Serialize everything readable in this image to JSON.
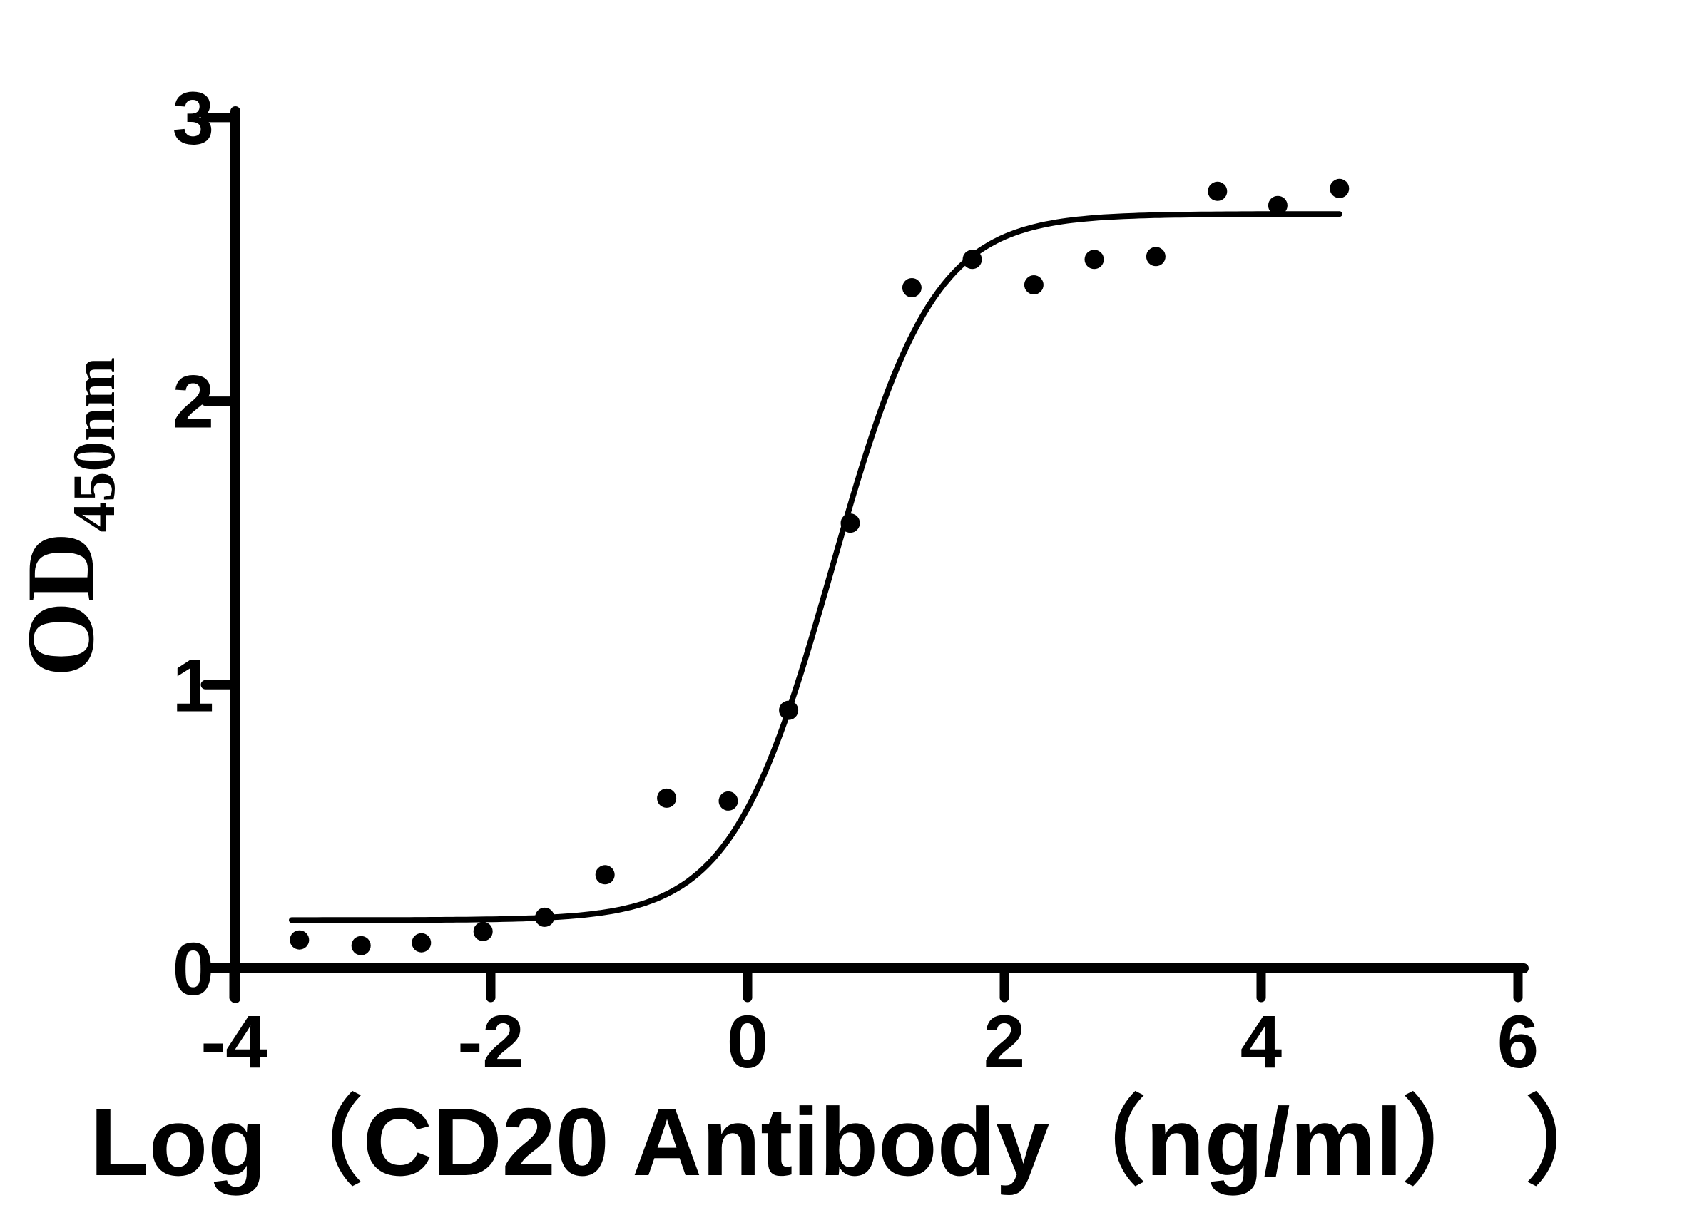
{
  "figure": {
    "background": "#ffffff",
    "ink": "#000000"
  },
  "chart_data": {
    "type": "scatter",
    "title": "",
    "xlabel": "Log（CD20 Antibody（ng/ml） ）",
    "ylabel": "OD450nm",
    "ylabel_main": "OD",
    "ylabel_sub": "450nm",
    "xlim": [
      -4,
      6
    ],
    "ylim": [
      0,
      3
    ],
    "x_ticks": [
      -4,
      -2,
      0,
      2,
      4,
      6
    ],
    "y_ticks": [
      0,
      1,
      2,
      3
    ],
    "grid": false,
    "legend": null,
    "points": [
      {
        "x": -3.49,
        "y": 0.1
      },
      {
        "x": -3.01,
        "y": 0.08
      },
      {
        "x": -2.54,
        "y": 0.09
      },
      {
        "x": -2.06,
        "y": 0.13
      },
      {
        "x": -1.58,
        "y": 0.18
      },
      {
        "x": -1.11,
        "y": 0.33
      },
      {
        "x": -0.63,
        "y": 0.6
      },
      {
        "x": -0.15,
        "y": 0.59
      },
      {
        "x": 0.32,
        "y": 0.91
      },
      {
        "x": 0.8,
        "y": 1.57
      },
      {
        "x": 1.28,
        "y": 2.4
      },
      {
        "x": 1.75,
        "y": 2.5
      },
      {
        "x": 2.23,
        "y": 2.41
      },
      {
        "x": 2.7,
        "y": 2.5
      },
      {
        "x": 3.18,
        "y": 2.51
      },
      {
        "x": 3.66,
        "y": 2.74
      },
      {
        "x": 4.13,
        "y": 2.69
      },
      {
        "x": 4.61,
        "y": 2.75
      }
    ],
    "fit_curve": {
      "model": "4PL sigmoidal",
      "bottom": 0.17,
      "top": 2.66,
      "logEC50": 0.66,
      "hill": 1.1,
      "x_start": -3.55,
      "x_end": 4.63
    }
  }
}
